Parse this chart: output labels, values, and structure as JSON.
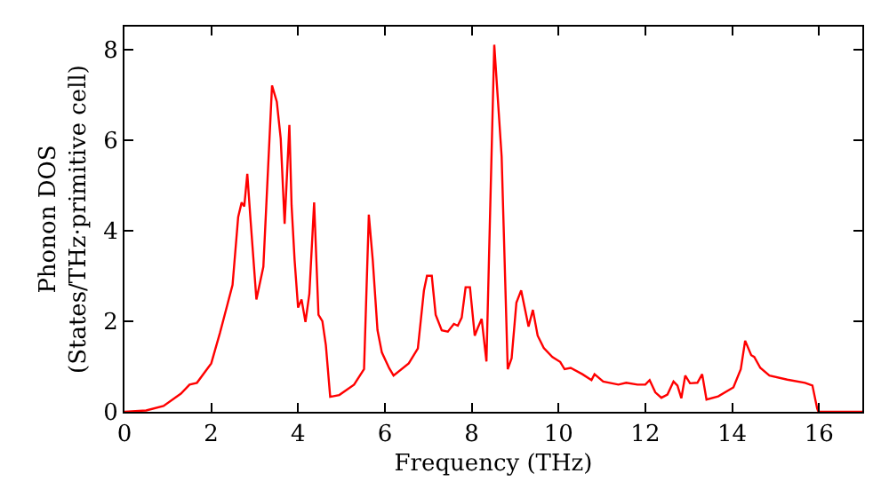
{
  "chart_data": {
    "type": "line",
    "xlabel": "Frequency (THz)",
    "ylabel": "Phonon DOS\n(States/THz·primitive cell)",
    "xlim": [
      0,
      17
    ],
    "ylim": [
      0,
      8.5
    ],
    "xticks": [
      0,
      2,
      4,
      6,
      8,
      10,
      12,
      14,
      16
    ],
    "yticks": [
      0,
      2,
      4,
      6,
      8
    ],
    "marker": "none",
    "line_style": "solid",
    "series": [
      {
        "color": "#ff0000",
        "x": [
          0,
          0.5,
          0.9,
          1.3,
          1.5,
          1.67,
          2.0,
          2.08,
          2.2,
          2.49,
          2.62,
          2.7,
          2.76,
          2.83,
          2.9,
          3.04,
          3.2,
          3.4,
          3.51,
          3.6,
          3.69,
          3.8,
          3.85,
          3.92,
          4.0,
          4.08,
          4.17,
          4.26,
          4.37,
          4.47,
          4.56,
          4.64,
          4.74,
          4.95,
          5.29,
          5.52,
          5.63,
          5.72,
          5.83,
          5.93,
          6.1,
          6.2,
          6.55,
          6.76,
          6.9,
          6.97,
          7.08,
          7.17,
          7.31,
          7.45,
          7.59,
          7.68,
          7.77,
          7.86,
          7.96,
          8.07,
          8.14,
          8.23,
          8.34,
          8.52,
          8.69,
          8.83,
          8.92,
          9.03,
          9.14,
          9.31,
          9.41,
          9.52,
          9.66,
          9.86,
          10.04,
          10.14,
          10.28,
          10.55,
          10.76,
          10.83,
          11.03,
          11.38,
          11.56,
          11.82,
          12.0,
          12.1,
          12.23,
          12.37,
          12.51,
          12.65,
          12.74,
          12.83,
          12.92,
          13.03,
          13.2,
          13.31,
          13.41,
          13.68,
          14.03,
          14.2,
          14.3,
          14.44,
          14.51,
          14.65,
          14.86,
          15.27,
          15.68,
          15.85,
          15.96,
          15.99,
          17.0
        ],
        "values": [
          0,
          0.03,
          0.13,
          0.4,
          0.6,
          0.64,
          1.07,
          1.34,
          1.74,
          2.8,
          4.3,
          4.62,
          4.53,
          5.25,
          4.3,
          2.48,
          3.2,
          7.2,
          6.84,
          6.03,
          4.15,
          6.33,
          4.56,
          3.35,
          2.3,
          2.48,
          1.98,
          2.6,
          4.62,
          2.14,
          2.0,
          1.47,
          0.33,
          0.37,
          0.6,
          0.94,
          4.35,
          3.35,
          1.8,
          1.31,
          0.96,
          0.8,
          1.07,
          1.4,
          2.68,
          3.0,
          3.0,
          2.14,
          1.8,
          1.77,
          1.94,
          1.9,
          2.08,
          2.75,
          2.75,
          1.68,
          1.85,
          2.05,
          1.11,
          8.1,
          5.63,
          0.94,
          1.18,
          2.41,
          2.68,
          1.88,
          2.25,
          1.68,
          1.41,
          1.21,
          1.1,
          0.94,
          0.97,
          0.83,
          0.7,
          0.83,
          0.67,
          0.6,
          0.64,
          0.6,
          0.6,
          0.7,
          0.43,
          0.31,
          0.38,
          0.67,
          0.58,
          0.3,
          0.8,
          0.63,
          0.64,
          0.83,
          0.27,
          0.34,
          0.54,
          0.94,
          1.57,
          1.25,
          1.21,
          0.97,
          0.8,
          0.71,
          0.64,
          0.58,
          0.07,
          0,
          0
        ]
      }
    ]
  }
}
